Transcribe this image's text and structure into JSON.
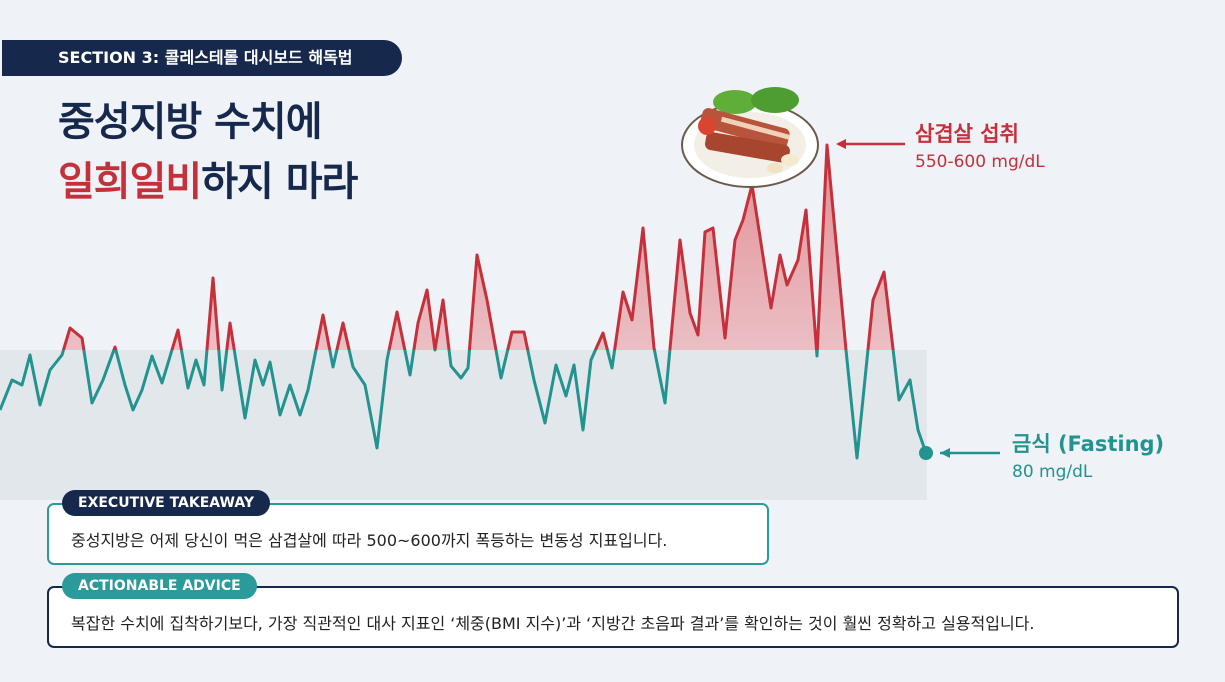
{
  "section_badge": "SECTION 3: 콜레스테롤 대시보드 해독법",
  "title": {
    "line1": "중성지방 수치에",
    "line2_highlight": "일희일비",
    "line2_rest": "하지 마라"
  },
  "annotations": {
    "peak": {
      "label": "삼겹살 섭취",
      "value": "550-600 mg/dL"
    },
    "fasting": {
      "label": "금식 (Fasting)",
      "value": "80 mg/dL"
    }
  },
  "takeaway": {
    "label": "EXECUTIVE TAKEAWAY",
    "text": "중성지방은 어제 당신이 먹은 삼겹살에 따라 500~600까지 폭등하는 변동성 지표입니다."
  },
  "advice": {
    "label": "ACTIONABLE ADVICE",
    "text": "복잡한 수치에 집착하기보다, 가장 직관적인 대사 지표인 ‘체중(BMI 지수)’과 ‘지방간 초음파 결과’를 확인하는 것이 훨씬 정확하고 실용적입니다."
  }
}
